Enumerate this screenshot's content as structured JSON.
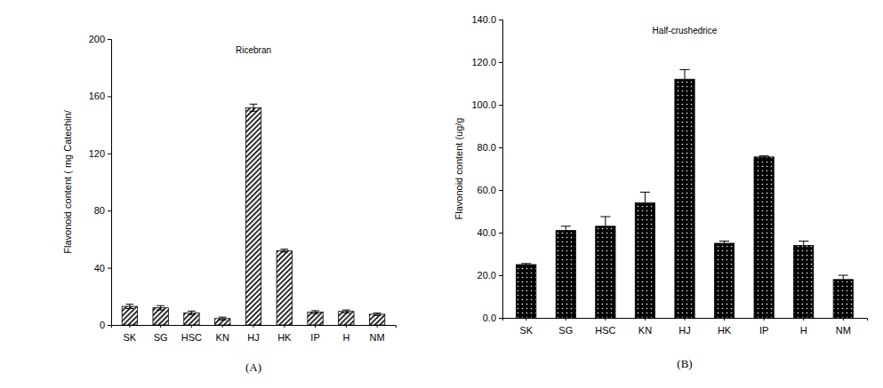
{
  "chart_data": [
    {
      "type": "bar",
      "title": "Ricebran",
      "y_label": "Flavonoid content ( mg Catechin/",
      "panel_label": "(A)",
      "categories": [
        "SK",
        "SG",
        "HSC",
        "KN",
        "HJ",
        "HK",
        "IP",
        "H",
        "NM"
      ],
      "values": [
        13,
        12,
        8.5,
        4.5,
        152,
        52,
        9,
        9.5,
        7.5
      ],
      "errors": [
        1.5,
        1.5,
        1.2,
        1,
        2.5,
        1,
        1,
        1,
        0.8
      ],
      "color": "#000000",
      "ylim": [
        0,
        200
      ],
      "yticks": [
        0,
        40,
        80,
        120,
        160,
        200
      ]
    },
    {
      "type": "bar",
      "title": "Half-crushedrice",
      "y_label": "Flavonoid content (ug/g",
      "panel_label": "(B)",
      "categories": [
        "SK",
        "SG",
        "HSC",
        "KN",
        "HJ",
        "HK",
        "IP",
        "H",
        "NM"
      ],
      "values": [
        25,
        41,
        43,
        54,
        112,
        35,
        75.5,
        34,
        18
      ],
      "errors": [
        0.5,
        2,
        4.5,
        5,
        4.5,
        1,
        0.5,
        2,
        2
      ],
      "color": "#000000",
      "ylim": [
        0,
        140
      ],
      "yticks": [
        {
          "value": 0,
          "label": "0.0"
        },
        {
          "value": 20,
          "label": "20.0"
        },
        {
          "value": 40,
          "label": "40.0"
        },
        {
          "value": 60,
          "label": "60.0"
        },
        {
          "value": 80,
          "label": "80.0"
        },
        {
          "value": 100,
          "label": "100.0"
        },
        {
          "value": 120,
          "label": "120.0"
        },
        {
          "value": 140,
          "label": "140.0"
        }
      ]
    }
  ]
}
